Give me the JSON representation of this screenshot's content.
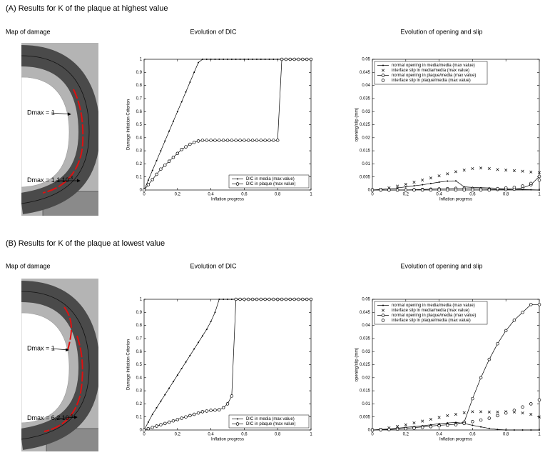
{
  "sections": [
    {
      "heading": "(A) Results for K of the plaque at highest value",
      "map_title": "Map of damage",
      "label_top": "Dmax = 1",
      "label_bottom": "Dmax = 1,1.10",
      "label_bottom_exp": "-3"
    },
    {
      "heading": "(B) Results for K of the plaque at lowest value",
      "map_title": "Map of damage",
      "label_top": "Dmax = 1",
      "label_bottom": "Dmax = 6,2.10",
      "label_bottom_exp": "-4"
    }
  ],
  "chart_data": [
    {
      "type": "line",
      "title": "Evolution of DIC",
      "x_label": "Inflation progress",
      "y_label": "Damage Initiation Criterion",
      "xlim": [
        0,
        1
      ],
      "ylim": [
        0,
        1
      ],
      "xticks": [
        0,
        0.2,
        0.4,
        0.6,
        0.8,
        1
      ],
      "yticks": [
        0,
        0.1,
        0.2,
        0.3,
        0.4,
        0.5,
        0.6,
        0.7,
        0.8,
        0.9,
        1
      ],
      "legend": "lower right",
      "x": [
        0,
        0.025,
        0.05,
        0.075,
        0.1,
        0.125,
        0.15,
        0.175,
        0.2,
        0.225,
        0.25,
        0.275,
        0.3,
        0.325,
        0.35,
        0.375,
        0.4,
        0.425,
        0.45,
        0.475,
        0.5,
        0.525,
        0.55,
        0.575,
        0.6,
        0.625,
        0.65,
        0.675,
        0.7,
        0.725,
        0.75,
        0.775,
        0.8,
        0.825,
        0.85,
        0.875,
        0.9,
        0.925,
        0.95,
        0.975,
        1
      ],
      "series": [
        {
          "name": "DIC in media (max value)",
          "color": "#000000",
          "marker": "dot",
          "linestyle": "solid",
          "values": [
            0,
            0.075,
            0.15,
            0.225,
            0.3,
            0.375,
            0.45,
            0.525,
            0.6,
            0.675,
            0.75,
            0.825,
            0.9,
            0.975,
            1,
            1,
            1,
            1,
            1,
            1,
            1,
            1,
            1,
            1,
            1,
            1,
            1,
            1,
            1,
            1,
            1,
            1,
            1,
            1,
            1,
            1,
            1,
            1,
            1,
            1,
            1
          ]
        },
        {
          "name": "DIC in plaque (max value)",
          "color": "#000000",
          "marker": "circle",
          "linestyle": "solid",
          "values": [
            0,
            0.04,
            0.08,
            0.12,
            0.16,
            0.19,
            0.22,
            0.25,
            0.28,
            0.31,
            0.33,
            0.35,
            0.365,
            0.375,
            0.38,
            0.38,
            0.38,
            0.38,
            0.38,
            0.38,
            0.38,
            0.38,
            0.38,
            0.38,
            0.38,
            0.38,
            0.38,
            0.38,
            0.38,
            0.38,
            0.38,
            0.38,
            0.38,
            1,
            1,
            1,
            1,
            1,
            1,
            1,
            1
          ]
        }
      ]
    },
    {
      "type": "line",
      "title": "Evolution of opening and slip",
      "x_label": "Inflation progress",
      "y_label": "opening/slip (mm)",
      "xlim": [
        0,
        1
      ],
      "ylim": [
        0,
        0.05
      ],
      "xticks": [
        0,
        0.2,
        0.4,
        0.6,
        0.8,
        1
      ],
      "yticks": [
        0,
        0.005,
        0.01,
        0.015,
        0.02,
        0.025,
        0.03,
        0.035,
        0.04,
        0.045,
        0.05
      ],
      "legend": "upper left",
      "x": [
        0,
        0.05,
        0.1,
        0.15,
        0.2,
        0.25,
        0.3,
        0.35,
        0.4,
        0.45,
        0.5,
        0.55,
        0.6,
        0.65,
        0.7,
        0.75,
        0.8,
        0.85,
        0.9,
        0.95,
        1
      ],
      "series": [
        {
          "name": "normal opening in media/media (max value)",
          "color": "#000000",
          "marker": "dot",
          "linestyle": "solid",
          "values": [
            0,
            0.0002,
            0.0005,
            0.0008,
            0.0012,
            0.0016,
            0.002,
            0.0025,
            0.003,
            0.0034,
            0.0035,
            0.0012,
            0.001,
            0.0009,
            0.0008,
            0.0007,
            0.0005,
            0.0003,
            0.0002,
            0.0001,
            0
          ]
        },
        {
          "name": "interface slip in media/media (max value)",
          "color": "#000000",
          "marker": "x",
          "linestyle": "none",
          "values": [
            0,
            0.0003,
            0.0008,
            0.0015,
            0.0022,
            0.003,
            0.0038,
            0.0046,
            0.0054,
            0.0062,
            0.007,
            0.0076,
            0.0082,
            0.0084,
            0.0082,
            0.0078,
            0.0076,
            0.0074,
            0.0072,
            0.0069,
            0.0066
          ]
        },
        {
          "name": "normal opening in plaque/media (max value)",
          "color": "#000000",
          "marker": "circle",
          "linestyle": "solid",
          "values": [
            0,
            0,
            0,
            0,
            0,
            0.0001,
            0.0002,
            0.0003,
            0.0004,
            0.0005,
            0.0006,
            0.0006,
            0.0005,
            0.0004,
            0.0003,
            0.0002,
            0.0002,
            0.0003,
            0.0008,
            0.002,
            0.0052
          ]
        },
        {
          "name": "interface slip in plaque/media (max value)",
          "color": "#000000",
          "marker": "circle",
          "linestyle": "none",
          "values": [
            0,
            0,
            0,
            0,
            0,
            0,
            0,
            0,
            0,
            0,
            0,
            0,
            0,
            0,
            0,
            0.0005,
            0.0008,
            0.001,
            0.0015,
            0.0025,
            0.0038
          ]
        }
      ]
    },
    {
      "type": "line",
      "title": "Evolution of DIC",
      "x_label": "Inflation progress",
      "y_label": "Damage Initiation Criterion",
      "xlim": [
        0,
        1
      ],
      "ylim": [
        0,
        1
      ],
      "xticks": [
        0,
        0.2,
        0.4,
        0.6,
        0.8,
        1
      ],
      "yticks": [
        0,
        0.1,
        0.2,
        0.3,
        0.4,
        0.5,
        0.6,
        0.7,
        0.8,
        0.9,
        1
      ],
      "legend": "lower right",
      "x": [
        0,
        0.025,
        0.05,
        0.075,
        0.1,
        0.125,
        0.15,
        0.175,
        0.2,
        0.225,
        0.25,
        0.275,
        0.3,
        0.325,
        0.35,
        0.375,
        0.4,
        0.425,
        0.45,
        0.475,
        0.5,
        0.525,
        0.55,
        0.575,
        0.6,
        0.625,
        0.65,
        0.675,
        0.7,
        0.725,
        0.75,
        0.775,
        0.8,
        0.825,
        0.85,
        0.875,
        0.9,
        0.925,
        0.95,
        0.975,
        1
      ],
      "series": [
        {
          "name": "DIC in media (max value)",
          "color": "#000000",
          "marker": "dot",
          "linestyle": "solid",
          "values": [
            0,
            0.06,
            0.12,
            0.17,
            0.22,
            0.27,
            0.32,
            0.37,
            0.42,
            0.47,
            0.52,
            0.57,
            0.62,
            0.67,
            0.72,
            0.77,
            0.83,
            0.9,
            1,
            1,
            1,
            1,
            1,
            1,
            1,
            1,
            1,
            1,
            1,
            1,
            1,
            1,
            1,
            1,
            1,
            1,
            1,
            1,
            1,
            1,
            1
          ]
        },
        {
          "name": "DIC in plaque (max value)",
          "color": "#000000",
          "marker": "circle",
          "linestyle": "solid",
          "values": [
            0,
            0.01,
            0.02,
            0.03,
            0.04,
            0.05,
            0.06,
            0.07,
            0.08,
            0.09,
            0.1,
            0.11,
            0.12,
            0.13,
            0.14,
            0.145,
            0.15,
            0.152,
            0.155,
            0.17,
            0.2,
            0.26,
            1,
            1,
            1,
            1,
            1,
            1,
            1,
            1,
            1,
            1,
            1,
            1,
            1,
            1,
            1,
            1,
            1,
            1,
            1
          ]
        }
      ]
    },
    {
      "type": "line",
      "title": "Evolution of opening and slip",
      "x_label": "Inflation progress",
      "y_label": "opening/slip (mm)",
      "xlim": [
        0,
        1
      ],
      "ylim": [
        0,
        0.05
      ],
      "xticks": [
        0,
        0.2,
        0.4,
        0.6,
        0.8,
        1
      ],
      "yticks": [
        0,
        0.005,
        0.01,
        0.015,
        0.02,
        0.025,
        0.03,
        0.035,
        0.04,
        0.045,
        0.05
      ],
      "legend": "upper left",
      "x": [
        0,
        0.05,
        0.1,
        0.15,
        0.2,
        0.25,
        0.3,
        0.35,
        0.4,
        0.45,
        0.5,
        0.55,
        0.6,
        0.65,
        0.7,
        0.75,
        0.8,
        0.85,
        0.9,
        0.95,
        1
      ],
      "series": [
        {
          "name": "normal opening in media/media (max value)",
          "color": "#000000",
          "marker": "dot",
          "linestyle": "solid",
          "values": [
            0,
            0.0002,
            0.0004,
            0.0007,
            0.001,
            0.0013,
            0.0016,
            0.002,
            0.0024,
            0.0027,
            0.0029,
            0.0025,
            0.0018,
            0.0012,
            0.0006,
            0.0002,
            0,
            0,
            0,
            0,
            0
          ]
        },
        {
          "name": "interface slip in media/media (max value)",
          "color": "#000000",
          "marker": "x",
          "linestyle": "none",
          "values": [
            0,
            0.0003,
            0.0008,
            0.0014,
            0.002,
            0.0027,
            0.0034,
            0.0041,
            0.0048,
            0.0055,
            0.006,
            0.0066,
            0.007,
            0.007,
            0.0069,
            0.0069,
            0.007,
            0.0069,
            0.0065,
            0.006,
            0.005
          ]
        },
        {
          "name": "normal opening in plaque/media (max value)",
          "color": "#000000",
          "marker": "circle",
          "linestyle": "solid",
          "values": [
            0,
            0.0001,
            0.0002,
            0.0004,
            0.0006,
            0.0009,
            0.0012,
            0.0015,
            0.0018,
            0.002,
            0.0022,
            0.003,
            0.012,
            0.02,
            0.027,
            0.033,
            0.038,
            0.042,
            0.045,
            0.048,
            0.048
          ]
        },
        {
          "name": "interface slip in plaque/media (max value)",
          "color": "#000000",
          "marker": "circle",
          "linestyle": "none",
          "values": [
            0,
            0.0001,
            0.0002,
            0.0003,
            0.0005,
            0.0007,
            0.001,
            0.0013,
            0.0016,
            0.0018,
            0.002,
            0.0025,
            0.0032,
            0.0038,
            0.0045,
            0.0055,
            0.0065,
            0.0075,
            0.0088,
            0.01,
            0.0115
          ]
        }
      ]
    }
  ]
}
